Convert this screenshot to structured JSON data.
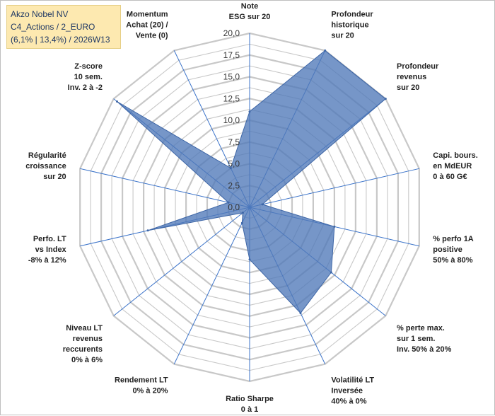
{
  "title_box": {
    "line1": "Akzo Nobel NV",
    "line2": "C4_Actions / 2_EURO",
    "line3": "(6,1% | 13,4%) / 2026W13"
  },
  "colors": {
    "fill": "#4f79b8",
    "stroke": "#3e66a6",
    "grid": "#c8c8c8",
    "axis": "#3b73c9",
    "title_bg": "#fde9b0"
  },
  "chart_data": {
    "type": "radar",
    "rmin": 0,
    "rmax": 20,
    "tick_labels": [
      "0,0",
      "2,5",
      "5,0",
      "7,5",
      "10,0",
      "12,5",
      "15,0",
      "17,5",
      "20,0"
    ],
    "tick_values": [
      0,
      2.5,
      5,
      7.5,
      10,
      12.5,
      15,
      17.5,
      20
    ],
    "grid_values": [
      1.25,
      2.5,
      3.75,
      5,
      6.25,
      7.5,
      8.75,
      10,
      11.25,
      12.5,
      13.75,
      15,
      16.25,
      17.5,
      18.75,
      20
    ],
    "axes": [
      {
        "lines": [
          "Note",
          "ESG sur 20"
        ],
        "value": 11
      },
      {
        "lines": [
          "Profondeur",
          "historique",
          "sur 20"
        ],
        "value": 20
      },
      {
        "lines": [
          "Profondeur",
          "revenus",
          "sur 20"
        ],
        "value": 20
      },
      {
        "lines": [
          "Capi. bours.",
          "en MdEUR",
          "0 à 60 G€"
        ],
        "value": 1.5
      },
      {
        "lines": [
          "% perfo 1A",
          "positive",
          "50% à 80%"
        ],
        "value": 10
      },
      {
        "lines": [
          "% perte max.",
          "sur 1 sem.",
          "Inv. 50% à 20%"
        ],
        "value": 12
      },
      {
        "lines": [
          "Volatilité LT",
          "Inversée",
          "40% à 0%"
        ],
        "value": 13.5
      },
      {
        "lines": [
          "Ratio Sharpe",
          "0 à 1"
        ],
        "value": 6
      },
      {
        "lines": [
          "Rendement LT",
          "0% à 20%"
        ],
        "value": 2
      },
      {
        "lines": [
          "Niveau LT",
          "revenus",
          "reccurents",
          "0% à 6%"
        ],
        "value": 1
      },
      {
        "lines": [
          "Perfo. LT",
          "vs Index",
          "-8% à 12%"
        ],
        "value": 12
      },
      {
        "lines": [
          "Régularité",
          "croissance",
          "sur 20"
        ],
        "value": 2.5
      },
      {
        "lines": [
          "Z-score",
          "10 sem.",
          "Inv. 2 à -2"
        ],
        "value": 19.5
      },
      {
        "lines": [
          "Momentum",
          "Achat (20) /",
          "Vente (0)"
        ],
        "value": 5
      }
    ]
  }
}
